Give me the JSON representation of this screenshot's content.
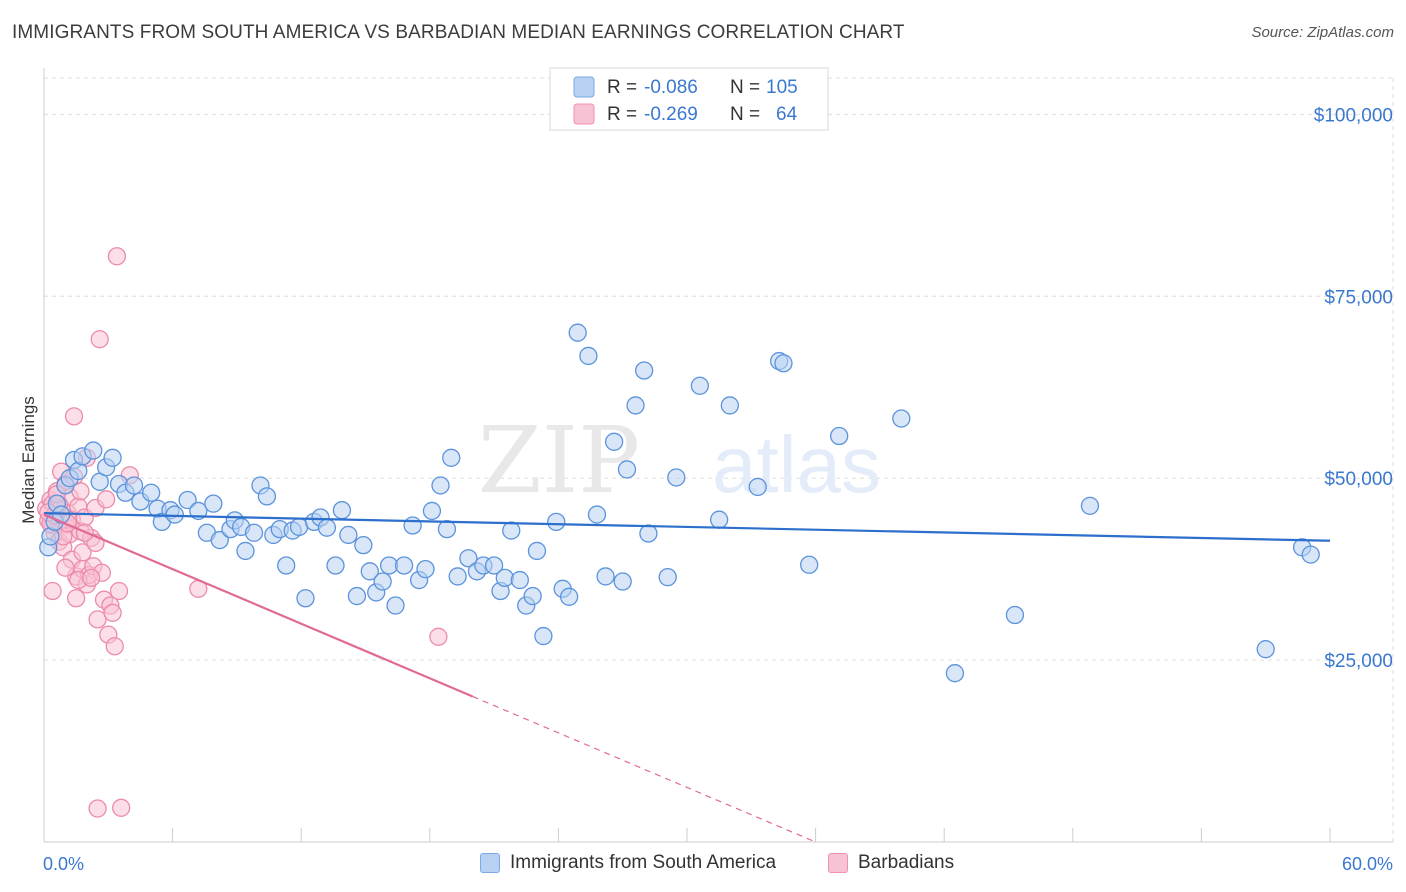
{
  "title": "IMMIGRANTS FROM SOUTH AMERICA VS BARBADIAN MEDIAN EARNINGS CORRELATION CHART",
  "source": "Source: ZipAtlas.com",
  "watermark": {
    "zip": "ZIP",
    "atlas": "atlas"
  },
  "legend_top": {
    "rows": [
      {
        "r_label": "R = ",
        "r_value": "-0.086",
        "n_label": "N = ",
        "n_value": "105",
        "color": "#7aaae8"
      },
      {
        "r_label": "R = ",
        "r_value": "-0.269",
        "n_label": "N = ",
        "n_value": "64",
        "color": "#f090b0"
      }
    ]
  },
  "colors": {
    "blue": "#5b93dc",
    "blue_fill": "#b8d1f3",
    "blue_line": "#2c6fcc",
    "pink": "#ec8bab",
    "pink_fill": "#f7c3d4",
    "pink_line": "#e06a93",
    "axis_label": "#3a78d0",
    "grid": "#dddddd"
  },
  "chart_data": {
    "type": "scatter",
    "title": "IMMIGRANTS FROM SOUTH AMERICA VS BARBADIAN MEDIAN EARNINGS CORRELATION CHART",
    "xlabel": "",
    "ylabel": "Median Earnings",
    "xlim": [
      0,
      60
    ],
    "ylim": [
      0,
      105000
    ],
    "x_tick_labels": [
      "0.0%",
      "60.0%"
    ],
    "y_ticks": [
      {
        "value": 25000,
        "label": "$25,000"
      },
      {
        "value": 50000,
        "label": "$50,000"
      },
      {
        "value": 75000,
        "label": "$75,000"
      },
      {
        "value": 100000,
        "label": "$100,000"
      }
    ],
    "grid": true,
    "series": [
      {
        "name": "Immigrants from South America",
        "color": "blue",
        "R": -0.086,
        "N": 105,
        "trend": {
          "x0": 0,
          "y0": 45200,
          "x1": 60,
          "y1": 41400,
          "dashed_from": null
        },
        "points": [
          [
            0.2,
            40500
          ],
          [
            0.3,
            42000
          ],
          [
            0.5,
            44000
          ],
          [
            0.6,
            46500
          ],
          [
            0.8,
            45000
          ],
          [
            1.0,
            49000
          ],
          [
            1.2,
            50000
          ],
          [
            1.4,
            52500
          ],
          [
            1.6,
            51000
          ],
          [
            1.8,
            53000
          ],
          [
            2.3,
            53800
          ],
          [
            2.6,
            49500
          ],
          [
            2.9,
            51500
          ],
          [
            3.2,
            52800
          ],
          [
            3.5,
            49200
          ],
          [
            3.8,
            48000
          ],
          [
            4.2,
            49000
          ],
          [
            4.5,
            46800
          ],
          [
            5.0,
            48000
          ],
          [
            5.3,
            45800
          ],
          [
            5.5,
            44000
          ],
          [
            5.9,
            45600
          ],
          [
            6.1,
            45000
          ],
          [
            6.7,
            47000
          ],
          [
            7.2,
            45500
          ],
          [
            7.6,
            42500
          ],
          [
            7.9,
            46500
          ],
          [
            8.2,
            41500
          ],
          [
            8.7,
            43000
          ],
          [
            8.9,
            44200
          ],
          [
            9.2,
            43300
          ],
          [
            9.4,
            40000
          ],
          [
            9.8,
            42500
          ],
          [
            10.1,
            49000
          ],
          [
            10.4,
            47500
          ],
          [
            10.7,
            42200
          ],
          [
            11.0,
            43000
          ],
          [
            11.3,
            38000
          ],
          [
            11.6,
            42800
          ],
          [
            11.9,
            43300
          ],
          [
            12.2,
            33500
          ],
          [
            12.6,
            44000
          ],
          [
            12.9,
            44600
          ],
          [
            13.2,
            43200
          ],
          [
            13.6,
            38000
          ],
          [
            13.9,
            45600
          ],
          [
            14.2,
            42200
          ],
          [
            14.6,
            33800
          ],
          [
            14.9,
            40800
          ],
          [
            15.2,
            37200
          ],
          [
            15.5,
            34300
          ],
          [
            15.8,
            35800
          ],
          [
            16.1,
            38000
          ],
          [
            16.4,
            32500
          ],
          [
            16.8,
            38000
          ],
          [
            17.2,
            43500
          ],
          [
            17.5,
            36000
          ],
          [
            17.8,
            37500
          ],
          [
            18.1,
            45500
          ],
          [
            18.5,
            49000
          ],
          [
            18.8,
            43000
          ],
          [
            19.0,
            52800
          ],
          [
            19.3,
            36500
          ],
          [
            19.8,
            39000
          ],
          [
            20.2,
            37200
          ],
          [
            20.5,
            38000
          ],
          [
            21.0,
            38000
          ],
          [
            21.3,
            34500
          ],
          [
            21.5,
            36300
          ],
          [
            21.8,
            42800
          ],
          [
            22.2,
            36000
          ],
          [
            22.5,
            32500
          ],
          [
            22.8,
            33800
          ],
          [
            23.0,
            40000
          ],
          [
            23.3,
            28300
          ],
          [
            23.9,
            44000
          ],
          [
            24.2,
            34800
          ],
          [
            24.5,
            33700
          ],
          [
            24.9,
            70000
          ],
          [
            25.4,
            66800
          ],
          [
            25.8,
            45000
          ],
          [
            26.2,
            36500
          ],
          [
            26.6,
            55000
          ],
          [
            27.0,
            35800
          ],
          [
            27.2,
            51200
          ],
          [
            27.6,
            60000
          ],
          [
            28.0,
            64800
          ],
          [
            28.2,
            42400
          ],
          [
            29.1,
            36400
          ],
          [
            29.5,
            50100
          ],
          [
            30.6,
            62700
          ],
          [
            31.5,
            44300
          ],
          [
            32.0,
            60000
          ],
          [
            33.3,
            48800
          ],
          [
            34.3,
            66100
          ],
          [
            34.5,
            65800
          ],
          [
            35.7,
            38100
          ],
          [
            37.1,
            55800
          ],
          [
            40.0,
            58200
          ],
          [
            42.5,
            23200
          ],
          [
            45.3,
            31200
          ],
          [
            48.8,
            46200
          ],
          [
            57.0,
            26500
          ],
          [
            58.7,
            40500
          ],
          [
            59.1,
            39500
          ]
        ]
      },
      {
        "name": "Barbadians",
        "color": "pink",
        "R": -0.269,
        "N": 64,
        "trend": {
          "x0": 0,
          "y0": 45000,
          "x1": 20,
          "y1": 20000,
          "x_end": 36,
          "y_end": 0,
          "dashed_from": 20
        },
        "points": [
          [
            0.1,
            45800
          ],
          [
            0.2,
            44200
          ],
          [
            0.3,
            47000
          ],
          [
            0.4,
            43500
          ],
          [
            0.4,
            46500
          ],
          [
            0.5,
            42500
          ],
          [
            0.6,
            48200
          ],
          [
            0.6,
            44600
          ],
          [
            0.7,
            41300
          ],
          [
            0.8,
            50900
          ],
          [
            0.8,
            45900
          ],
          [
            0.9,
            40500
          ],
          [
            1.0,
            43600
          ],
          [
            1.0,
            49200
          ],
          [
            1.1,
            45200
          ],
          [
            1.2,
            47400
          ],
          [
            1.2,
            42300
          ],
          [
            1.3,
            38800
          ],
          [
            1.3,
            44300
          ],
          [
            1.4,
            58500
          ],
          [
            1.4,
            50200
          ],
          [
            1.5,
            36500
          ],
          [
            1.5,
            33500
          ],
          [
            1.6,
            46100
          ],
          [
            1.7,
            42700
          ],
          [
            1.7,
            48200
          ],
          [
            1.8,
            39800
          ],
          [
            1.8,
            37500
          ],
          [
            1.9,
            44600
          ],
          [
            2.0,
            35400
          ],
          [
            2.0,
            52800
          ],
          [
            2.1,
            36700
          ],
          [
            2.2,
            41800
          ],
          [
            2.3,
            37900
          ],
          [
            2.4,
            45900
          ],
          [
            2.4,
            41100
          ],
          [
            2.5,
            30600
          ],
          [
            2.6,
            69100
          ],
          [
            2.7,
            37000
          ],
          [
            2.8,
            33300
          ],
          [
            2.9,
            47100
          ],
          [
            3.0,
            28500
          ],
          [
            3.1,
            32500
          ],
          [
            3.2,
            31500
          ],
          [
            3.3,
            26900
          ],
          [
            3.4,
            80500
          ],
          [
            3.5,
            34500
          ],
          [
            0.3,
            43700
          ],
          [
            0.5,
            44900
          ],
          [
            0.7,
            46400
          ],
          [
            0.9,
            42000
          ],
          [
            1.1,
            43800
          ],
          [
            0.2,
            45300
          ],
          [
            0.6,
            47800
          ],
          [
            1.6,
            36000
          ],
          [
            1.9,
            42500
          ],
          [
            2.2,
            36300
          ],
          [
            4.0,
            50400
          ],
          [
            7.2,
            34800
          ],
          [
            18.4,
            28200
          ],
          [
            2.5,
            4600
          ],
          [
            3.6,
            4700
          ],
          [
            0.4,
            34500
          ],
          [
            1.0,
            37700
          ]
        ]
      }
    ]
  },
  "legend_bottom": [
    {
      "label": "Immigrants from South America",
      "color": "blue"
    },
    {
      "label": "Barbadians",
      "color": "pink"
    }
  ]
}
